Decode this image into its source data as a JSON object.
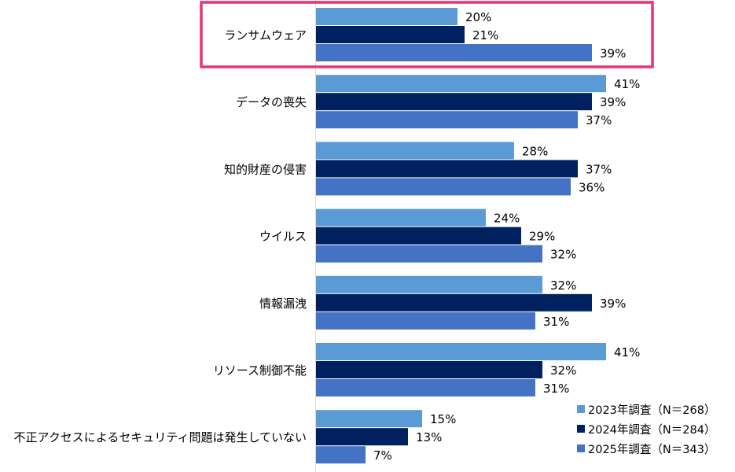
{
  "chart_data": {
    "type": "bar",
    "orientation": "horizontal",
    "categories": [
      "ランサムウェア",
      "データの喪失",
      "知的財産の侵害",
      "ウイルス",
      "情報漏洩",
      "リソース制御不能",
      "不正アクセスによるセキュリティ問題は発生していない"
    ],
    "series": [
      {
        "name": "2023年調査（N＝268）",
        "color": "#5b9bd5",
        "values": [
          20,
          41,
          28,
          24,
          32,
          41,
          15
        ]
      },
      {
        "name": "2024年調査（N＝284）",
        "color": "#002060",
        "values": [
          21,
          39,
          37,
          29,
          39,
          32,
          13
        ]
      },
      {
        "name": "2025年調査（N＝343）",
        "color": "#4472c4",
        "values": [
          39,
          37,
          36,
          32,
          31,
          31,
          7
        ]
      }
    ],
    "value_suffix": "%",
    "xlim": [
      0,
      50
    ],
    "legend_position": "bottom-right",
    "highlight": {
      "category_index": 0,
      "color": "#e8336b"
    }
  }
}
